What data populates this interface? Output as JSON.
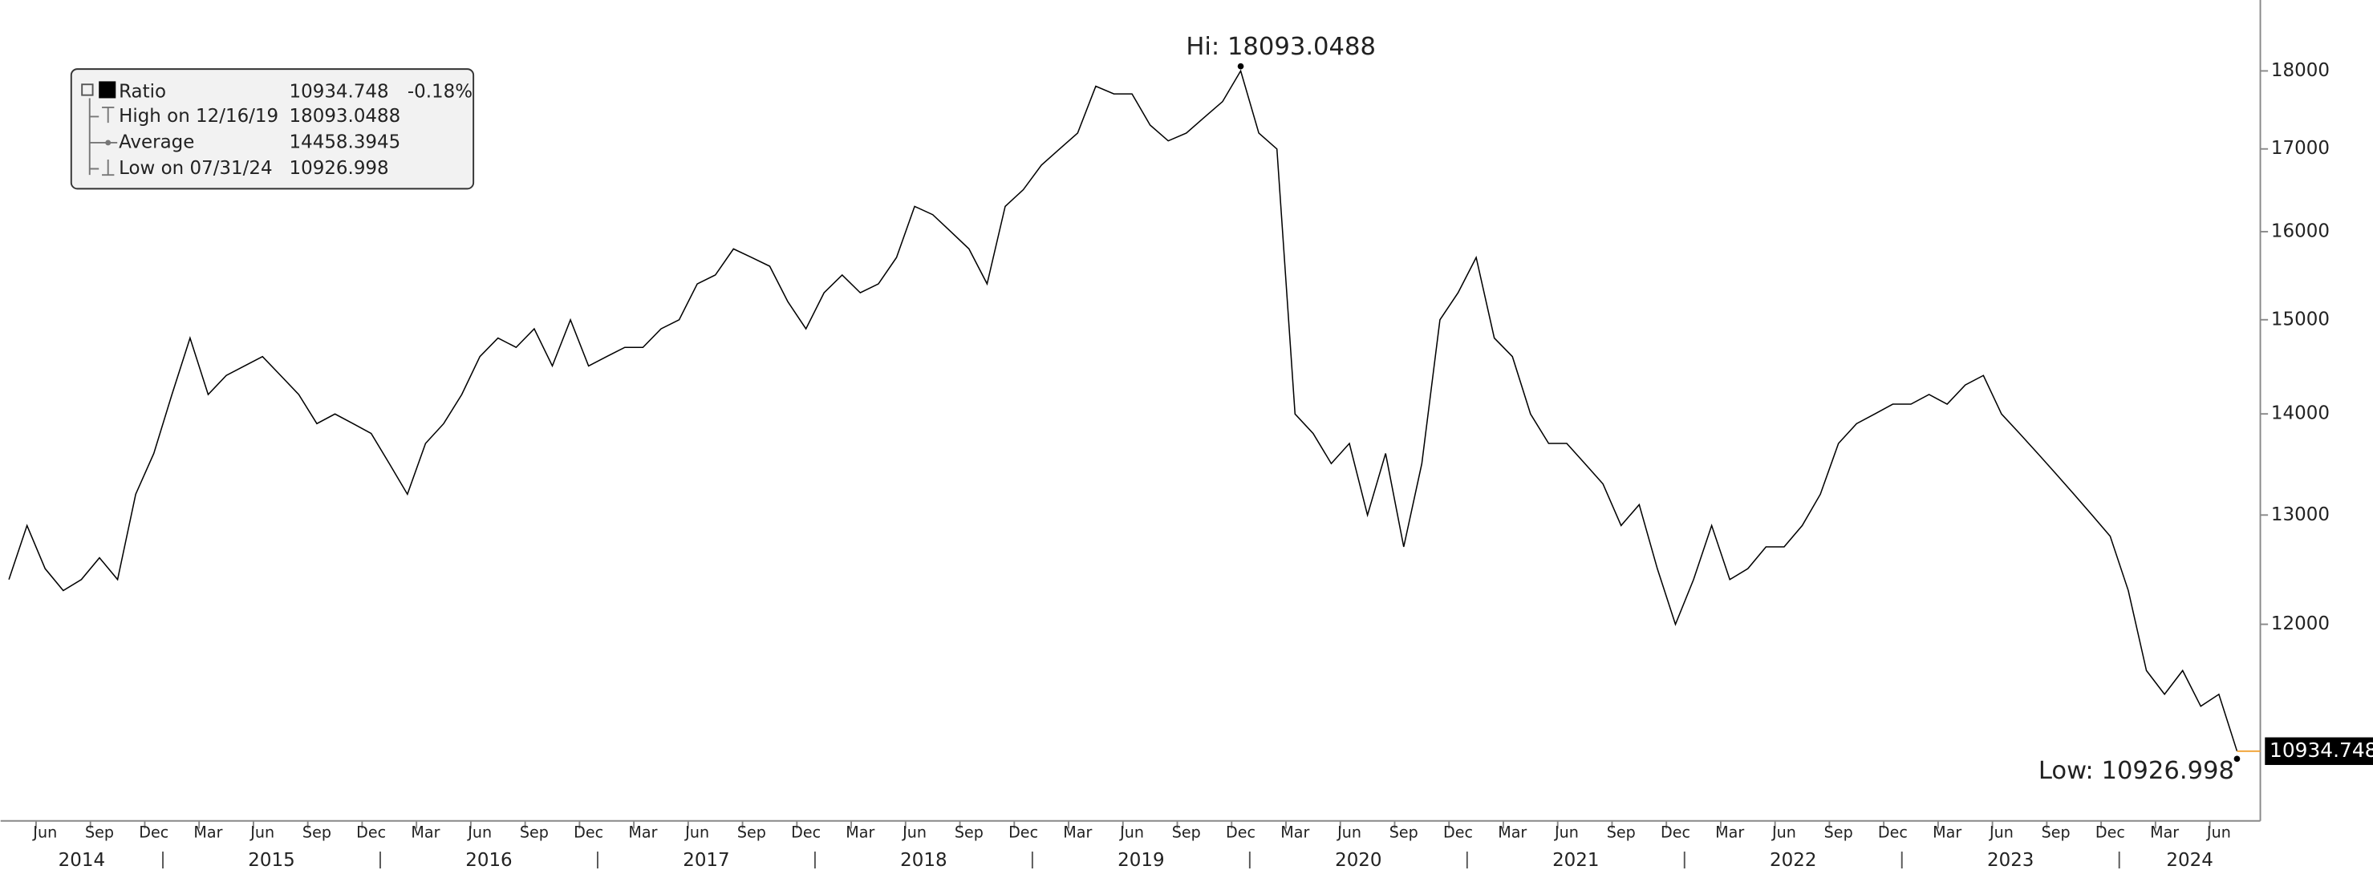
{
  "chart_data": {
    "type": "line",
    "log_scale": true,
    "grid": false,
    "x": [
      "2014-04",
      "2014-05",
      "2014-06",
      "2014-07",
      "2014-08",
      "2014-09",
      "2014-10",
      "2014-11",
      "2014-12",
      "2015-01",
      "2015-02",
      "2015-03",
      "2015-04",
      "2015-05",
      "2015-06",
      "2015-07",
      "2015-08",
      "2015-09",
      "2015-10",
      "2015-11",
      "2015-12",
      "2016-01",
      "2016-02",
      "2016-03",
      "2016-04",
      "2016-05",
      "2016-06",
      "2016-07",
      "2016-08",
      "2016-09",
      "2016-10",
      "2016-11",
      "2016-12",
      "2017-01",
      "2017-02",
      "2017-03",
      "2017-04",
      "2017-05",
      "2017-06",
      "2017-07",
      "2017-08",
      "2017-09",
      "2017-10",
      "2017-11",
      "2017-12",
      "2018-01",
      "2018-02",
      "2018-03",
      "2018-04",
      "2018-05",
      "2018-06",
      "2018-07",
      "2018-08",
      "2018-09",
      "2018-10",
      "2018-11",
      "2018-12",
      "2019-01",
      "2019-02",
      "2019-03",
      "2019-04",
      "2019-05",
      "2019-06",
      "2019-07",
      "2019-08",
      "2019-09",
      "2019-10",
      "2019-11",
      "2019-12",
      "2020-01",
      "2020-02",
      "2020-03",
      "2020-04",
      "2020-05",
      "2020-06",
      "2020-07",
      "2020-08",
      "2020-09",
      "2020-10",
      "2020-11",
      "2020-12",
      "2021-01",
      "2021-02",
      "2021-03",
      "2021-04",
      "2021-05",
      "2021-06",
      "2021-07",
      "2021-08",
      "2021-09",
      "2021-10",
      "2021-11",
      "2021-12",
      "2022-01",
      "2022-02",
      "2022-03",
      "2022-04",
      "2022-05",
      "2022-06",
      "2022-07",
      "2022-08",
      "2022-09",
      "2022-10",
      "2022-11",
      "2022-12",
      "2023-01",
      "2023-02",
      "2023-03",
      "2023-04",
      "2023-05",
      "2023-06",
      "2023-07",
      "2023-08",
      "2023-09",
      "2023-10",
      "2023-11",
      "2023-12",
      "2024-01",
      "2024-02",
      "2024-03",
      "2024-04",
      "2024-05",
      "2024-06",
      "2024-07"
    ],
    "series": [
      {
        "name": "Ratio",
        "color": "#000000",
        "values": [
          12400,
          12900,
          12500,
          12300,
          12400,
          12600,
          12400,
          13200,
          13600,
          14200,
          14800,
          14200,
          14400,
          14500,
          14600,
          14400,
          14200,
          13900,
          14000,
          13900,
          13800,
          13500,
          13200,
          13700,
          13900,
          14200,
          14600,
          14800,
          14700,
          14900,
          14500,
          15000,
          14500,
          14600,
          14700,
          14700,
          14900,
          15000,
          15400,
          15500,
          15800,
          15700,
          15600,
          15200,
          14900,
          15300,
          15500,
          15300,
          15400,
          15700,
          16300,
          16200,
          16000,
          15800,
          15400,
          16300,
          16500,
          16800,
          17000,
          17200,
          17800,
          17700,
          17700,
          17300,
          17100,
          17200,
          17400,
          17600,
          18000,
          17200,
          17000,
          14000,
          13800,
          13500,
          13700,
          13000,
          13600,
          12700,
          13500,
          15000,
          15300,
          15700,
          14800,
          14600,
          14000,
          13700,
          13700,
          13500,
          13300,
          12900,
          13100,
          12500,
          12000,
          12400,
          12900,
          12400,
          12500,
          12700,
          12700,
          12900,
          13200,
          13700,
          13900,
          14000,
          14100,
          14100,
          14200,
          14100,
          14300,
          14400,
          14000,
          13800,
          13600,
          13400,
          13200,
          13000,
          12800,
          12300,
          11600,
          11400,
          11600,
          11300,
          11400,
          10934.748
        ]
      }
    ],
    "ylim": [
      10390,
      18960
    ],
    "yticks": [
      12000,
      13000,
      14000,
      15000,
      16000,
      17000,
      18000
    ],
    "xticks": [
      {
        "value": "2014-06",
        "label": "Jun"
      },
      {
        "value": "2014-09",
        "label": "Sep"
      },
      {
        "value": "2014-12",
        "label": "Dec"
      },
      {
        "value": "2015-03",
        "label": "Mar"
      },
      {
        "value": "2015-06",
        "label": "Jun"
      },
      {
        "value": "2015-09",
        "label": "Sep"
      },
      {
        "value": "2015-12",
        "label": "Dec"
      },
      {
        "value": "2016-03",
        "label": "Mar"
      },
      {
        "value": "2016-06",
        "label": "Jun"
      },
      {
        "value": "2016-09",
        "label": "Sep"
      },
      {
        "value": "2016-12",
        "label": "Dec"
      },
      {
        "value": "2017-03",
        "label": "Mar"
      },
      {
        "value": "2017-06",
        "label": "Jun"
      },
      {
        "value": "2017-09",
        "label": "Sep"
      },
      {
        "value": "2017-12",
        "label": "Dec"
      },
      {
        "value": "2018-03",
        "label": "Mar"
      },
      {
        "value": "2018-06",
        "label": "Jun"
      },
      {
        "value": "2018-09",
        "label": "Sep"
      },
      {
        "value": "2018-12",
        "label": "Dec"
      },
      {
        "value": "2019-03",
        "label": "Mar"
      },
      {
        "value": "2019-06",
        "label": "Jun"
      },
      {
        "value": "2019-09",
        "label": "Sep"
      },
      {
        "value": "2019-12",
        "label": "Dec"
      },
      {
        "value": "2020-03",
        "label": "Mar"
      },
      {
        "value": "2020-06",
        "label": "Jun"
      },
      {
        "value": "2020-09",
        "label": "Sep"
      },
      {
        "value": "2020-12",
        "label": "Dec"
      },
      {
        "value": "2021-03",
        "label": "Mar"
      },
      {
        "value": "2021-06",
        "label": "Jun"
      },
      {
        "value": "2021-09",
        "label": "Sep"
      },
      {
        "value": "2021-12",
        "label": "Dec"
      },
      {
        "value": "2022-03",
        "label": "Mar"
      },
      {
        "value": "2022-06",
        "label": "Jun"
      },
      {
        "value": "2022-09",
        "label": "Sep"
      },
      {
        "value": "2022-12",
        "label": "Dec"
      },
      {
        "value": "2023-03",
        "label": "Mar"
      },
      {
        "value": "2023-06",
        "label": "Jun"
      },
      {
        "value": "2023-09",
        "label": "Sep"
      },
      {
        "value": "2023-12",
        "label": "Dec"
      },
      {
        "value": "2024-03",
        "label": "Mar"
      },
      {
        "value": "2024-06",
        "label": "Jun"
      }
    ],
    "year_labels": [
      "2014",
      "2015",
      "2016",
      "2017",
      "2018",
      "2019",
      "2020",
      "2021",
      "2022",
      "2023",
      "2024"
    ],
    "annotations": {
      "high": "Hi: 18093.0488",
      "high_x": "2019-12",
      "low": "Low: 10926.998"
    },
    "legend": {
      "name": "Ratio",
      "last": "10934.748",
      "change": "-0.18%",
      "rows": [
        {
          "label": "High on 12/16/19",
          "value": "18093.0488"
        },
        {
          "label": "Average",
          "value": "14458.3945"
        },
        {
          "label": "Low on 07/31/24",
          "value": "10926.998"
        }
      ]
    }
  }
}
